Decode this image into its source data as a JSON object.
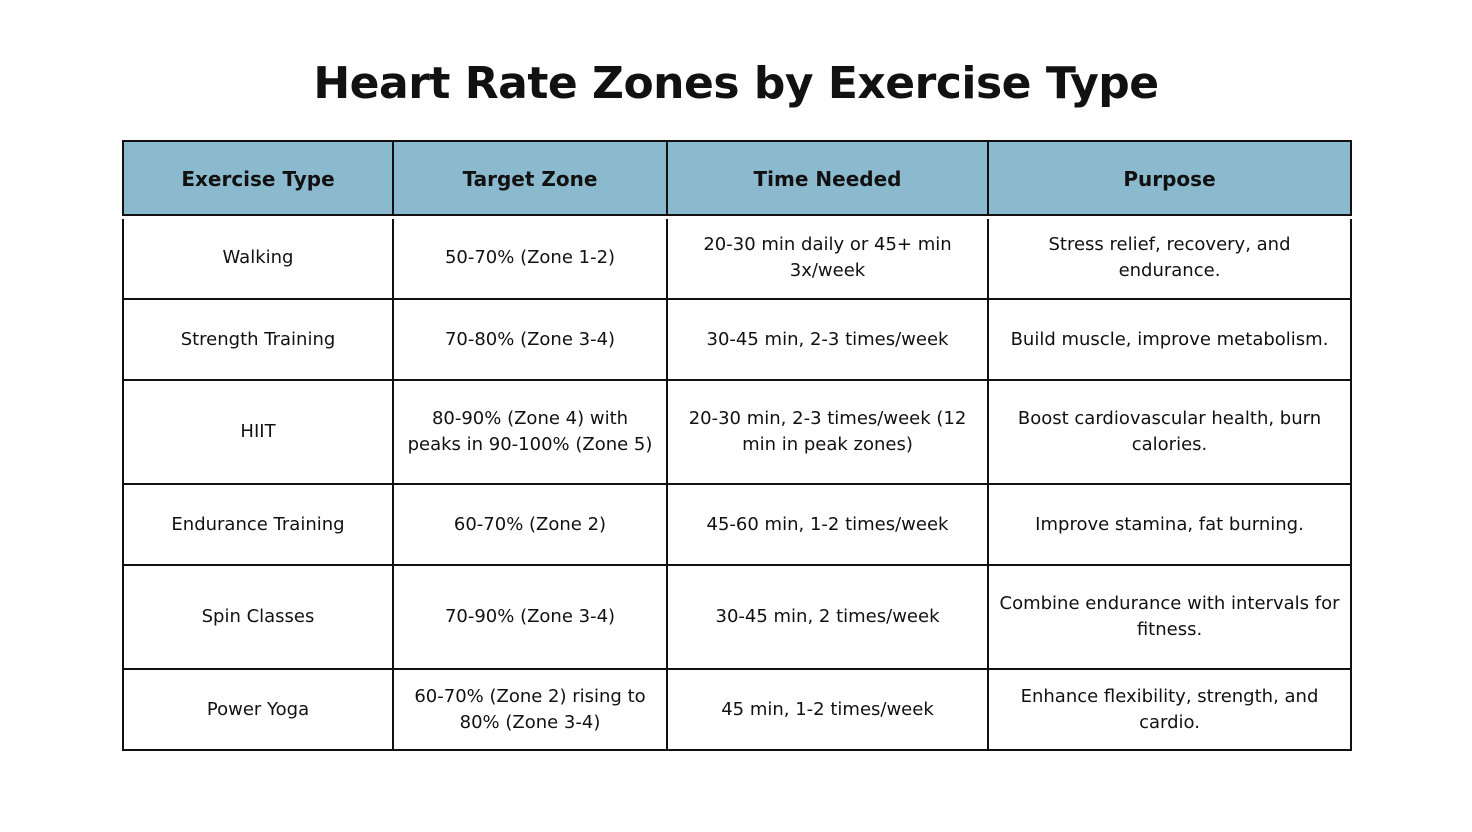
{
  "title": "Heart Rate Zones by Exercise Type",
  "colors": {
    "header_bg": "#8bb9cd",
    "border": "#111111",
    "text": "#111111"
  },
  "table": {
    "headers": [
      "Exercise Type",
      "Target Zone",
      "Time Needed",
      "Purpose"
    ],
    "rows": [
      [
        "Walking",
        "50-70% (Zone 1-2)",
        "20-30 min daily or 45+ min 3x/week",
        "Stress relief, recovery, and endurance."
      ],
      [
        "Strength Training",
        "70-80% (Zone 3-4)",
        "30-45 min, 2-3 times/week",
        "Build muscle, improve metabolism."
      ],
      [
        "HIIT",
        "80-90% (Zone 4) with peaks in 90-100% (Zone 5)",
        "20-30 min, 2-3 times/week (12 min in peak zones)",
        "Boost cardiovascular health, burn calories."
      ],
      [
        "Endurance Training",
        "60-70% (Zone 2)",
        "45-60 min, 1-2 times/week",
        "Improve stamina, fat burning."
      ],
      [
        "Spin Classes",
        "70-90% (Zone 3-4)",
        "30-45 min, 2 times/week",
        "Combine endurance with intervals for fitness."
      ],
      [
        "Power Yoga",
        "60-70% (Zone 2) rising to 80% (Zone 3-4)",
        "45 min, 1-2 times/week",
        "Enhance flexibility, strength, and cardio."
      ]
    ]
  }
}
